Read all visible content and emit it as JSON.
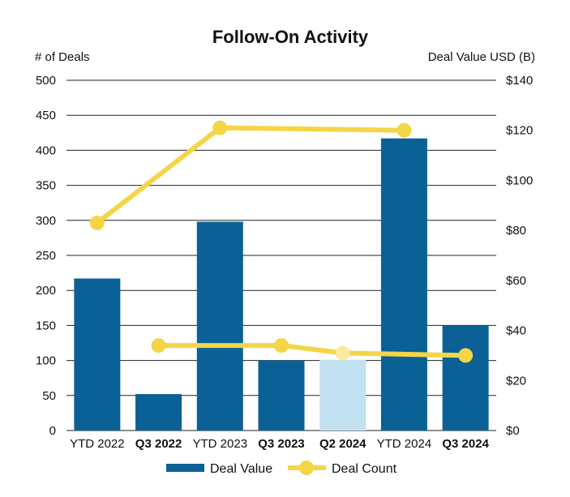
{
  "chart_data": {
    "type": "bar",
    "title": "Follow-On Activity",
    "ylabel_left": "# of Deals",
    "ylabel_right": "Deal Value USD (B)",
    "categories": [
      "YTD 2022",
      "Q3 2022",
      "YTD 2023",
      "Q3 2023",
      "Q2 2024",
      "YTD 2024",
      "Q3 2024"
    ],
    "category_bold": [
      false,
      true,
      false,
      true,
      true,
      false,
      true
    ],
    "left_axis": {
      "min": 0,
      "max": 500,
      "ticks": [
        "0",
        "50",
        "100",
        "150",
        "200",
        "250",
        "300",
        "350",
        "400",
        "450",
        "500"
      ]
    },
    "right_axis": {
      "min": 0,
      "max": 140,
      "ticks": [
        "$0",
        "$20",
        "$40",
        "$60",
        "$80",
        "$100",
        "$120",
        "$140"
      ]
    },
    "grid": true,
    "legend_position": "bottom",
    "series": [
      {
        "name": "Deal Value",
        "type": "bar",
        "axis": "left",
        "values": [
          217,
          52,
          298,
          100,
          101,
          417,
          150
        ],
        "color": "#0b6196",
        "highlight_color": "#c2e1f1",
        "highlight_index": 4
      },
      {
        "name": "Deal Count",
        "type": "line",
        "axis": "right",
        "color": "#f4d546",
        "highlight_color": "#fbeb9f",
        "lines": [
          {
            "indices": [
              0,
              2,
              5
            ],
            "values": [
              83,
              121,
              120
            ]
          },
          {
            "indices": [
              1,
              3,
              4,
              6
            ],
            "values": [
              34,
              34,
              31,
              30
            ],
            "faded_index": 4
          }
        ]
      }
    ]
  }
}
